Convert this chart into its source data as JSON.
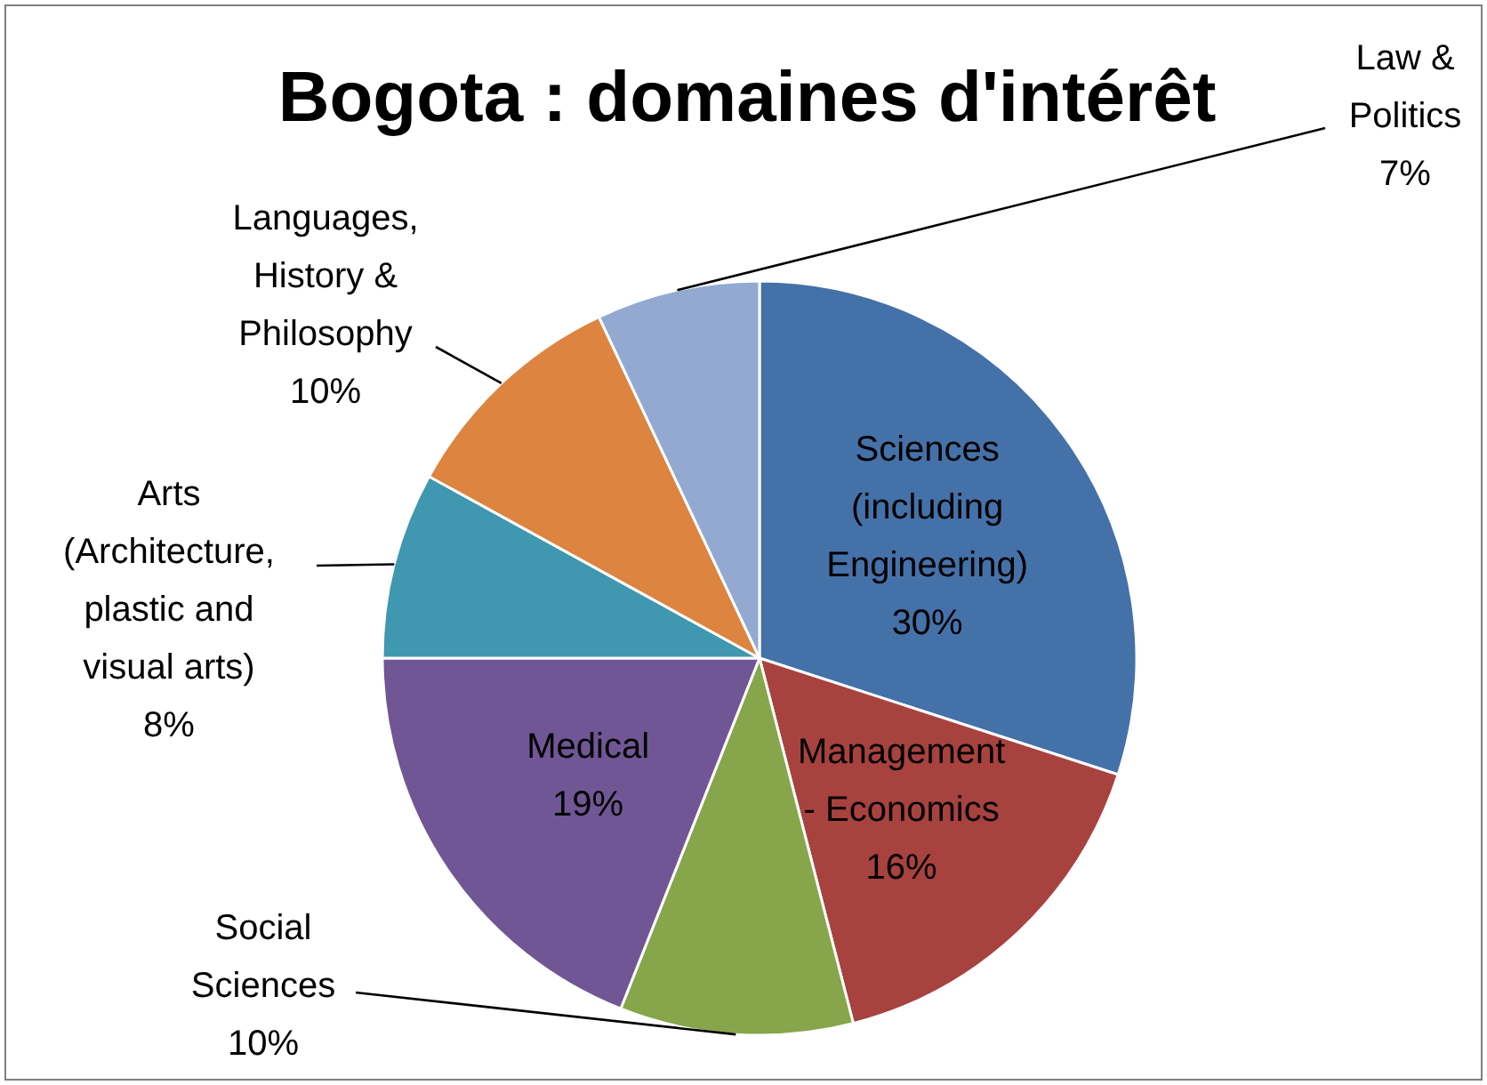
{
  "chart_data": {
    "type": "pie",
    "title": "Bogota : domaines d'intérêt",
    "categories": [
      "Sciences\n(including\nEngineering)",
      "Management\n- Economics",
      "Social\nSciences",
      "Medical",
      "Arts\n(Architecture,\nplastic and\nvisual arts)",
      "Languages,\nHistory &\nPhilosophy",
      "Law &\nPolitics"
    ],
    "values": [
      30,
      16,
      10,
      19,
      8,
      10,
      7
    ],
    "colors": [
      "#4571a9",
      "#a8423f",
      "#87a54b",
      "#715695",
      "#3f97b0",
      "#dc8440",
      "#93a9d1"
    ],
    "value_labels": [
      "30%",
      "16%",
      "10%",
      "19%",
      "8%",
      "10%",
      "7%"
    ],
    "legend": false
  }
}
